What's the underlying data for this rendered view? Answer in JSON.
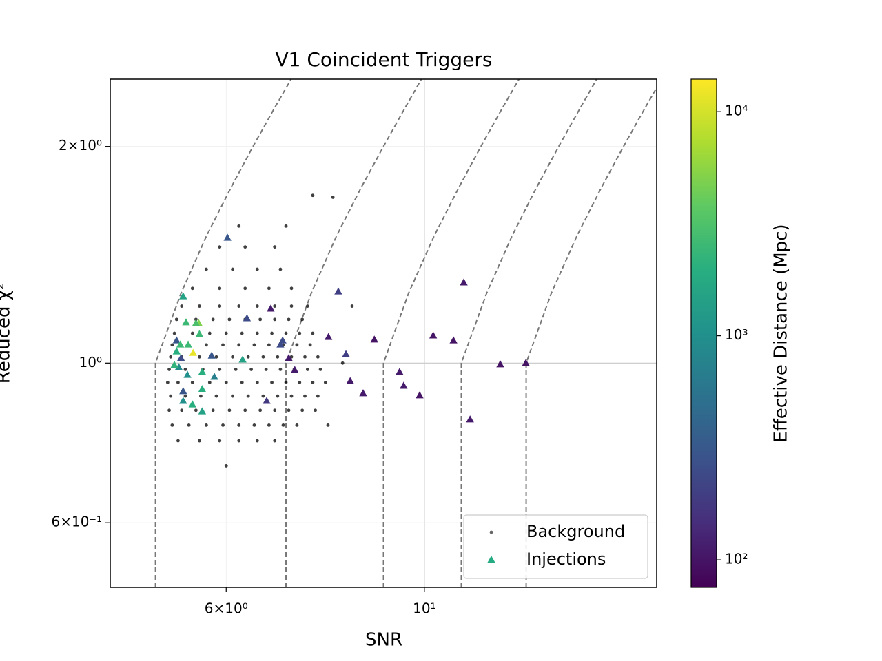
{
  "chart_data": {
    "type": "scatter",
    "title": "V1 Coincident Triggers",
    "x_label": "SNR",
    "y_label": "Reduced χ²",
    "x_scale": "log",
    "y_scale": "log",
    "xlim": [
      4.45,
      18.2
    ],
    "ylim": [
      0.488,
      2.48
    ],
    "xticks": [
      {
        "value": 6,
        "label": "6×10⁰"
      },
      {
        "value": 10,
        "label": "10¹"
      }
    ],
    "yticks": [
      {
        "value": 0.6,
        "label": "6×10⁻¹"
      },
      {
        "value": 1,
        "label": "10⁰"
      },
      {
        "value": 2,
        "label": "2×10⁰"
      }
    ],
    "grid": true,
    "legend_loc": "lower right",
    "series": [
      {
        "name": "Background",
        "color": "#000000",
        "marker": "circle",
        "x": [
          5.3,
          5.6,
          5.9,
          6.2,
          6.5,
          6.8,
          5.22,
          5.45,
          5.7,
          5.95,
          6.2,
          6.45,
          6.7,
          6.95,
          7.2,
          5.18,
          5.35,
          5.55,
          5.8,
          6.05,
          6.3,
          6.55,
          6.8,
          7.05,
          7.3,
          7.55,
          5.2,
          5.4,
          5.62,
          5.85,
          6.1,
          6.35,
          6.6,
          6.85,
          7.1,
          7.35,
          7.6,
          5.16,
          5.3,
          5.5,
          5.75,
          6.0,
          6.25,
          6.5,
          6.75,
          7.0,
          7.25,
          7.5,
          7.75,
          5.18,
          5.4,
          5.65,
          5.9,
          6.15,
          6.4,
          6.65,
          6.9,
          7.15,
          7.4,
          7.65,
          5.2,
          5.35,
          5.6,
          5.85,
          6.1,
          6.35,
          6.6,
          6.85,
          7.1,
          7.35,
          7.6,
          5.22,
          5.45,
          5.7,
          5.95,
          6.2,
          6.45,
          6.7,
          6.95,
          7.2,
          7.45,
          5.25,
          5.5,
          5.75,
          6.0,
          6.25,
          6.5,
          6.75,
          7.0,
          7.25,
          7.5,
          5.28,
          5.55,
          5.8,
          6.05,
          6.3,
          6.55,
          6.8,
          7.05,
          7.3,
          5.35,
          5.6,
          5.9,
          6.2,
          6.5,
          6.8,
          7.1,
          7.4,
          5.5,
          5.9,
          6.3,
          6.7,
          7.1,
          5.7,
          6.1,
          6.5,
          6.9,
          5.9,
          6.3,
          6.8,
          6.2,
          7.0,
          7.9,
          8.3,
          7.8,
          8.1,
          6.0,
          7.5
        ],
        "y": [
          0.78,
          0.78,
          0.78,
          0.78,
          0.78,
          0.78,
          0.82,
          0.82,
          0.82,
          0.82,
          0.82,
          0.82,
          0.82,
          0.82,
          0.82,
          0.86,
          0.86,
          0.86,
          0.86,
          0.86,
          0.86,
          0.86,
          0.86,
          0.86,
          0.86,
          0.86,
          0.9,
          0.9,
          0.9,
          0.9,
          0.9,
          0.9,
          0.9,
          0.9,
          0.9,
          0.9,
          0.9,
          0.94,
          0.94,
          0.94,
          0.94,
          0.94,
          0.94,
          0.94,
          0.94,
          0.94,
          0.94,
          0.94,
          0.94,
          0.98,
          0.98,
          0.98,
          0.98,
          0.98,
          0.98,
          0.98,
          0.98,
          0.98,
          0.98,
          0.98,
          1.02,
          1.02,
          1.02,
          1.02,
          1.02,
          1.02,
          1.02,
          1.02,
          1.02,
          1.02,
          1.02,
          1.06,
          1.06,
          1.06,
          1.06,
          1.06,
          1.06,
          1.06,
          1.06,
          1.06,
          1.06,
          1.1,
          1.1,
          1.1,
          1.1,
          1.1,
          1.1,
          1.1,
          1.1,
          1.1,
          1.1,
          1.15,
          1.15,
          1.15,
          1.15,
          1.15,
          1.15,
          1.15,
          1.15,
          1.15,
          1.2,
          1.2,
          1.2,
          1.2,
          1.2,
          1.2,
          1.2,
          1.2,
          1.27,
          1.27,
          1.27,
          1.27,
          1.27,
          1.35,
          1.35,
          1.35,
          1.35,
          1.45,
          1.45,
          1.45,
          1.55,
          1.55,
          1.7,
          1.2,
          0.82,
          1.0,
          0.72,
          1.71
        ]
      },
      {
        "name": "Injections",
        "color": "#25ab82",
        "marker": "triangle",
        "x": [
          11.07,
          8.01,
          8.79,
          10.23,
          10.78,
          12.16,
          12.99,
          9.38,
          9.48,
          9.88,
          11.25,
          8.54,
          8.26,
          8.17,
          7.81,
          7.16,
          7.05,
          6.94,
          6.9,
          6.73,
          6.66,
          6.33,
          6.26,
          6.02,
          5.82,
          5.78,
          5.64,
          5.64,
          5.64,
          5.59,
          5.55,
          5.6,
          5.51,
          5.5,
          5.44,
          5.43,
          5.41,
          5.37,
          5.37,
          5.37,
          5.34,
          5.31,
          5.28,
          5.28,
          5.25,
          5.33
        ],
        "y": [
          1.294,
          1.257,
          1.078,
          1.092,
          1.075,
          0.996,
          1.0,
          0.972,
          0.93,
          0.902,
          0.835,
          0.908,
          0.944,
          1.029,
          1.087,
          0.978,
          1.016,
          1.075,
          1.061,
          1.19,
          0.886,
          1.154,
          1.011,
          1.493,
          0.957,
          1.024,
          0.857,
          0.92,
          0.972,
          1.136,
          1.136,
          1.097,
          1.033,
          0.876,
          1.061,
          0.963,
          1.139,
          1.238,
          0.886,
          0.914,
          1.016,
          0.987,
          1.075,
          1.038,
          0.994,
          1.061
        ],
        "c": [
          110,
          200,
          100,
          100,
          100,
          100,
          100,
          110,
          110,
          100,
          110,
          110,
          110,
          200,
          110,
          110,
          110,
          250,
          250,
          110,
          180,
          250,
          1500,
          300,
          700,
          300,
          1500,
          2000,
          2000,
          5000,
          3000,
          2500,
          12000,
          2000,
          2500,
          1000,
          2500,
          1500,
          1000,
          300,
          250,
          900,
          300,
          2000,
          2200,
          2500
        ]
      }
    ],
    "contour_lines": [
      {
        "x": [
          5,
          5,
          5.34,
          5.7,
          6.07,
          6.43,
          6.78,
          7.12
        ],
        "y": [
          0.488,
          1,
          1.25,
          1.5,
          1.75,
          2,
          2.25,
          2.5
        ]
      },
      {
        "x": [
          7,
          7,
          7.47,
          7.97,
          8.49,
          9.0,
          9.49,
          9.96
        ],
        "y": [
          0.488,
          1,
          1.25,
          1.5,
          1.75,
          2,
          2.25,
          2.5
        ]
      },
      {
        "x": [
          9,
          9,
          9.6,
          10.25,
          10.92,
          11.57,
          12.2,
          12.81
        ],
        "y": [
          0.488,
          1,
          1.25,
          1.5,
          1.75,
          2,
          2.25,
          2.5
        ]
      },
      {
        "x": [
          11,
          11,
          11.74,
          12.53,
          13.34,
          14.14,
          14.91,
          15.65
        ],
        "y": [
          0.488,
          1,
          1.25,
          1.5,
          1.75,
          2,
          2.25,
          2.5
        ]
      },
      {
        "x": [
          13,
          13,
          13.87,
          14.81,
          15.77,
          16.71,
          17.62,
          18.5
        ],
        "y": [
          0.488,
          1,
          1.25,
          1.5,
          1.75,
          2,
          2.25,
          2.5
        ]
      }
    ],
    "colorbar": {
      "label": "Effective Distance (Mpc)",
      "scale": "log",
      "colormap": "viridis",
      "lim": [
        75.4,
        13960
      ],
      "ticks": [
        {
          "value": 100,
          "label": "10²"
        },
        {
          "value": 1000,
          "label": "10³"
        },
        {
          "value": 10000,
          "label": "10⁴"
        }
      ]
    }
  }
}
